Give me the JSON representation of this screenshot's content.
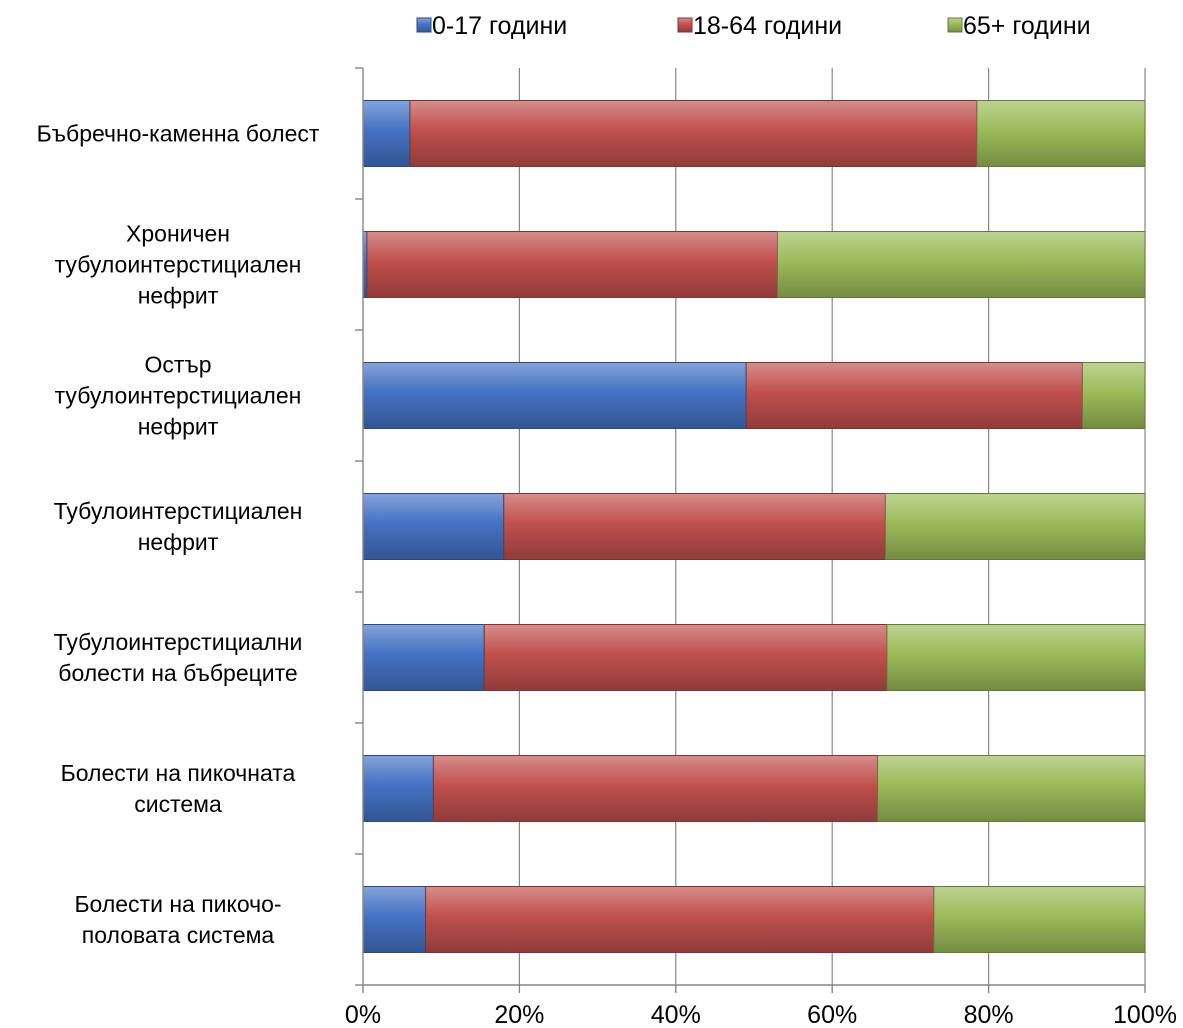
{
  "chart_data": {
    "type": "bar",
    "orientation": "horizontal",
    "stacking": "percent",
    "categories": [
      [
        "Бъбречно-каменна болест"
      ],
      [
        "Хроничен",
        "тубулоинтерстициален",
        "нефрит"
      ],
      [
        "Остър",
        "тубулоинтерстициален",
        "нефрит"
      ],
      [
        "Тубулоинтерстициален",
        "нефрит"
      ],
      [
        "Тубулоинтерстициални",
        "болести на бъбреците"
      ],
      [
        "Болести на пикочната",
        "система"
      ],
      [
        "Болести на пикочо-",
        "половата система"
      ]
    ],
    "series": [
      {
        "name": "0-17 години",
        "color": "#4472c4",
        "values": [
          6,
          0.5,
          49,
          18,
          15.5,
          9,
          8
        ]
      },
      {
        "name": "18-64 години",
        "color": "#c0504d",
        "values": [
          72.5,
          52.5,
          43,
          48.8,
          51.5,
          56.8,
          65
        ]
      },
      {
        "name": "65+ години",
        "color": "#9bbb59",
        "values": [
          21.5,
          47,
          8,
          33.2,
          33,
          34.2,
          27
        ]
      }
    ],
    "x_ticks": [
      "0%",
      "20%",
      "40%",
      "60%",
      "80%",
      "100%"
    ],
    "xlim": [
      0,
      100
    ],
    "grid": true,
    "legend_position": "top"
  }
}
